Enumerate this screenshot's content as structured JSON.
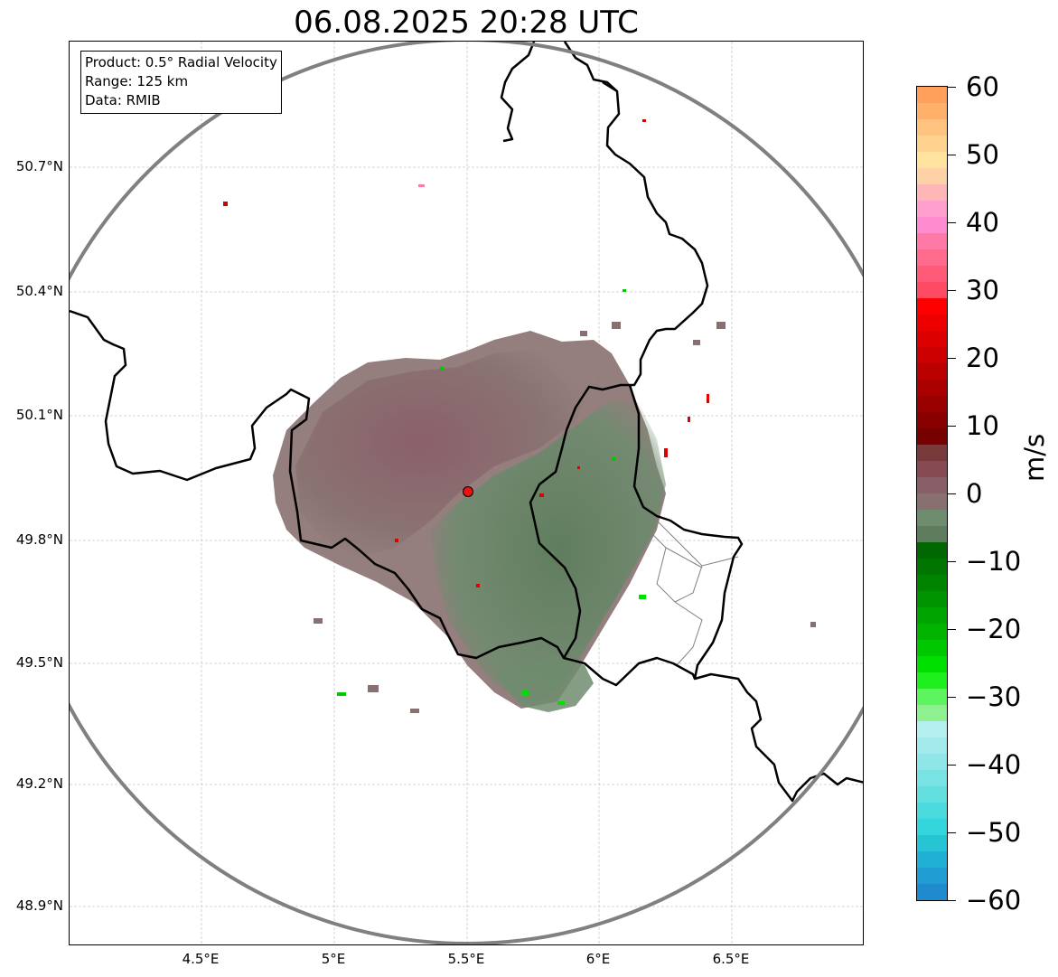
{
  "title": "06.08.2025 20:28 UTC",
  "info_box": {
    "product": "Product: 0.5° Radial Velocity",
    "range": "Range: 125 km",
    "data": "Data: RMIB"
  },
  "map": {
    "lon_ticks": [
      "4.5°E",
      "5°E",
      "5.5°E",
      "6°E",
      "6.5°E"
    ],
    "lat_ticks": [
      "50.7°N",
      "50.4°N",
      "50.1°N",
      "49.8°N",
      "49.5°N",
      "49.2°N",
      "48.9°N"
    ],
    "radar_site": {
      "lon": 5.5,
      "lat": 49.91
    },
    "range_ring_color": "#808080",
    "border_color": "#000000"
  },
  "colorbar": {
    "unit": "m/s",
    "ticks": [
      "60",
      "50",
      "40",
      "30",
      "20",
      "10",
      "0",
      "−10",
      "−20",
      "−30",
      "−40",
      "−50",
      "−60"
    ],
    "colors": [
      "#ff9f5a",
      "#ffb06a",
      "#ffc27f",
      "#ffd28f",
      "#ffe39e",
      "#ffd1a6",
      "#ffb6b6",
      "#ff9fce",
      "#ff8ccf",
      "#ff79a8",
      "#ff6b8c",
      "#ff5a78",
      "#ff4a64",
      "#ff0000",
      "#ee0000",
      "#dd0000",
      "#cc0000",
      "#bb0000",
      "#aa0000",
      "#990000",
      "#880000",
      "#770000",
      "#7a3a3a",
      "#854a52",
      "#8a5e68",
      "#887070",
      "#6e8c6e",
      "#5d7d5d",
      "#006800",
      "#007600",
      "#008400",
      "#009400",
      "#00a400",
      "#00b400",
      "#00c800",
      "#00e000",
      "#1ef01e",
      "#5df55d",
      "#8ff08f",
      "#b5efef",
      "#a4eaea",
      "#8fe6e6",
      "#79e2e2",
      "#62dede",
      "#4ad9dd",
      "#33d6dd",
      "#27c4d4",
      "#1fb0d4",
      "#1f9dd2",
      "#1f8ace"
    ]
  }
}
